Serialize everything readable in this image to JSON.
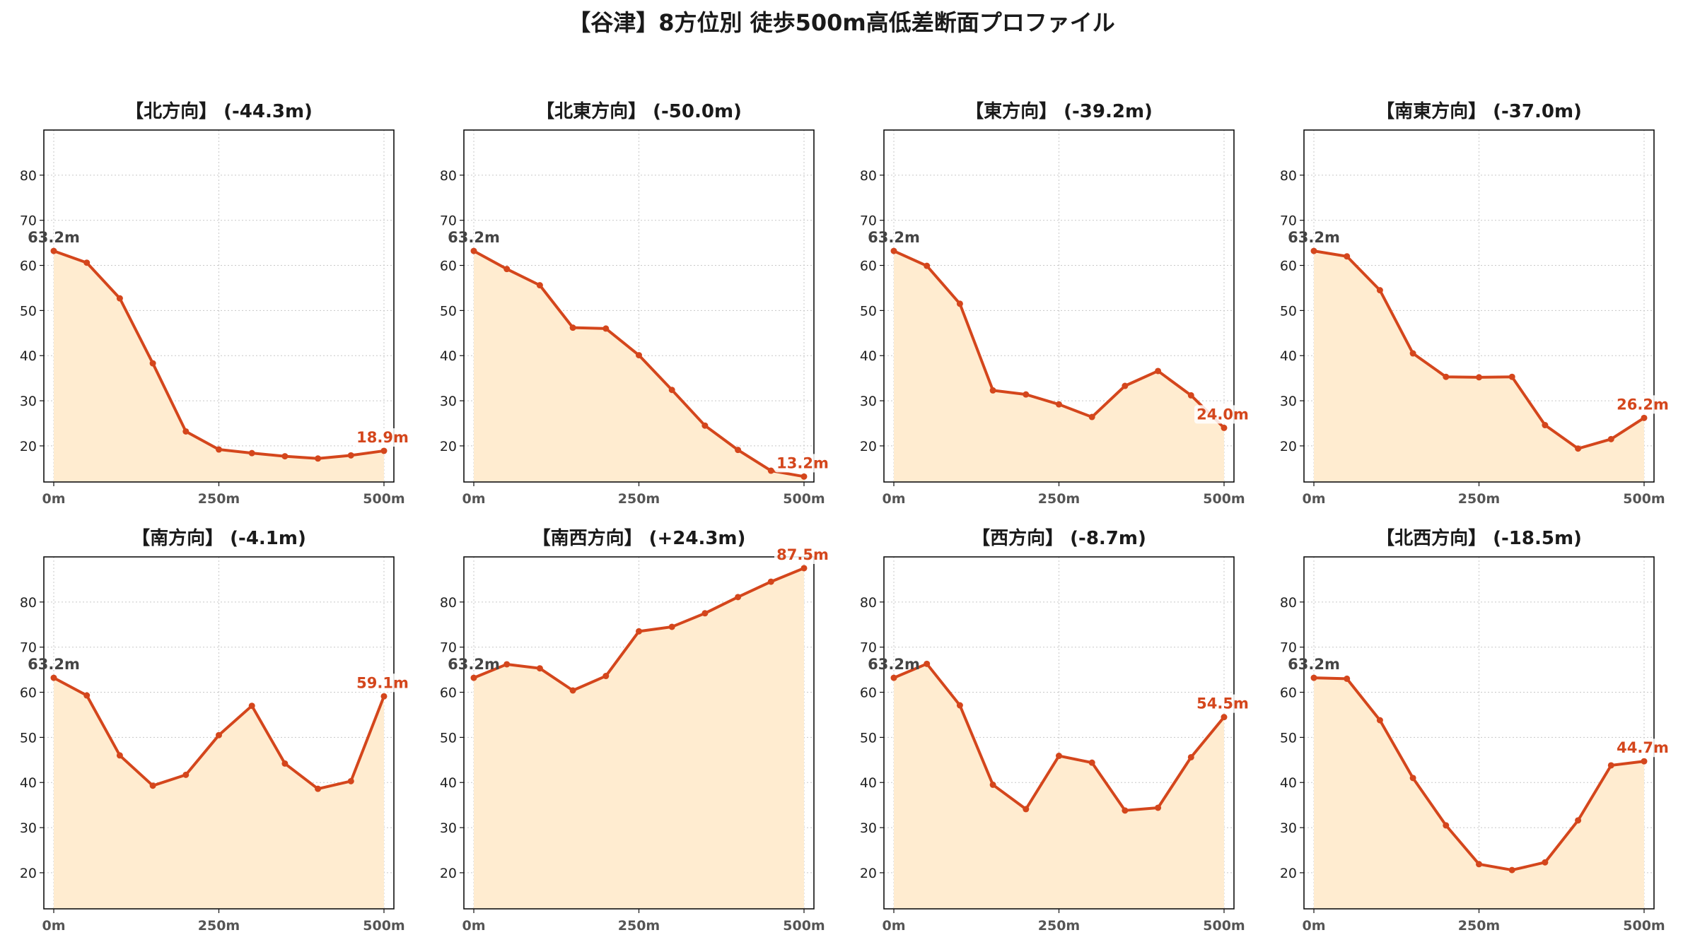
{
  "suptitle": "【谷津】8方位別 徒歩500m高低差断面プロファイル",
  "colors": {
    "line": "#d4461c",
    "fill": "#ffecd0",
    "start_label": "#444444",
    "end_label": "#d4461c",
    "grid": "#c8c8c8"
  },
  "chart_data": [
    {
      "type": "area",
      "title": "【北方向】 (-44.3m)",
      "x": [
        0,
        50,
        100,
        150,
        200,
        250,
        300,
        350,
        400,
        450,
        500
      ],
      "values": [
        63.2,
        60.6,
        52.7,
        38.3,
        23.2,
        19.2,
        18.4,
        17.7,
        17.2,
        17.9,
        18.9
      ],
      "start_label": "63.2m",
      "end_label": "18.9m",
      "ylim": [
        12,
        90
      ],
      "yticks": [
        20,
        30,
        40,
        50,
        60,
        70,
        80
      ],
      "xticks": [
        "0m",
        "250m",
        "500m"
      ],
      "grid": true
    },
    {
      "type": "area",
      "title": "【北東方向】 (-50.0m)",
      "x": [
        0,
        50,
        100,
        150,
        200,
        250,
        300,
        350,
        400,
        450,
        500
      ],
      "values": [
        63.2,
        59.2,
        55.6,
        46.2,
        46.0,
        40.1,
        32.4,
        24.5,
        19.1,
        14.5,
        13.2
      ],
      "start_label": "63.2m",
      "end_label": "13.2m",
      "ylim": [
        12,
        90
      ],
      "yticks": [
        20,
        30,
        40,
        50,
        60,
        70,
        80
      ],
      "xticks": [
        "0m",
        "250m",
        "500m"
      ],
      "grid": true
    },
    {
      "type": "area",
      "title": "【東方向】 (-39.2m)",
      "x": [
        0,
        50,
        100,
        150,
        200,
        250,
        300,
        350,
        400,
        450,
        500
      ],
      "values": [
        63.2,
        59.9,
        51.5,
        32.3,
        31.4,
        29.2,
        26.4,
        33.3,
        36.6,
        31.2,
        24.0
      ],
      "start_label": "63.2m",
      "end_label": "24.0m",
      "ylim": [
        12,
        90
      ],
      "yticks": [
        20,
        30,
        40,
        50,
        60,
        70,
        80
      ],
      "xticks": [
        "0m",
        "250m",
        "500m"
      ],
      "grid": true
    },
    {
      "type": "area",
      "title": "【南東方向】 (-37.0m)",
      "x": [
        0,
        50,
        100,
        150,
        200,
        250,
        300,
        350,
        400,
        450,
        500
      ],
      "values": [
        63.2,
        62.0,
        54.5,
        40.5,
        35.3,
        35.2,
        35.3,
        24.6,
        19.4,
        21.5,
        26.2
      ],
      "start_label": "63.2m",
      "end_label": "26.2m",
      "ylim": [
        12,
        90
      ],
      "yticks": [
        20,
        30,
        40,
        50,
        60,
        70,
        80
      ],
      "xticks": [
        "0m",
        "250m",
        "500m"
      ],
      "grid": true
    },
    {
      "type": "area",
      "title": "【南方向】 (-4.1m)",
      "x": [
        0,
        50,
        100,
        150,
        200,
        250,
        300,
        350,
        400,
        450,
        500
      ],
      "values": [
        63.2,
        59.3,
        46.0,
        39.3,
        41.7,
        50.5,
        57.0,
        44.2,
        38.6,
        40.3,
        59.1
      ],
      "start_label": "63.2m",
      "end_label": "59.1m",
      "ylim": [
        12,
        90
      ],
      "yticks": [
        20,
        30,
        40,
        50,
        60,
        70,
        80
      ],
      "xticks": [
        "0m",
        "250m",
        "500m"
      ],
      "grid": true
    },
    {
      "type": "area",
      "title": "【南西方向】 (+24.3m)",
      "x": [
        0,
        50,
        100,
        150,
        200,
        250,
        300,
        350,
        400,
        450,
        500
      ],
      "values": [
        63.2,
        66.2,
        65.3,
        60.4,
        63.6,
        73.5,
        74.5,
        77.5,
        81.1,
        84.5,
        87.5
      ],
      "start_label": "63.2m",
      "end_label": "87.5m",
      "ylim": [
        12,
        90
      ],
      "yticks": [
        20,
        30,
        40,
        50,
        60,
        70,
        80
      ],
      "xticks": [
        "0m",
        "250m",
        "500m"
      ],
      "grid": true
    },
    {
      "type": "area",
      "title": "【西方向】 (-8.7m)",
      "x": [
        0,
        50,
        100,
        150,
        200,
        250,
        300,
        350,
        400,
        450,
        500
      ],
      "values": [
        63.2,
        66.3,
        57.1,
        39.5,
        34.1,
        45.9,
        44.4,
        33.8,
        34.4,
        45.6,
        54.5
      ],
      "start_label": "63.2m",
      "end_label": "54.5m",
      "ylim": [
        12,
        90
      ],
      "yticks": [
        20,
        30,
        40,
        50,
        60,
        70,
        80
      ],
      "xticks": [
        "0m",
        "250m",
        "500m"
      ],
      "grid": true
    },
    {
      "type": "area",
      "title": "【北西方向】 (-18.5m)",
      "x": [
        0,
        50,
        100,
        150,
        200,
        250,
        300,
        350,
        400,
        450,
        500
      ],
      "values": [
        63.2,
        63.0,
        53.8,
        41.0,
        30.5,
        21.9,
        20.6,
        22.3,
        31.6,
        43.8,
        44.7
      ],
      "start_label": "63.2m",
      "end_label": "44.7m",
      "ylim": [
        12,
        90
      ],
      "yticks": [
        20,
        30,
        40,
        50,
        60,
        70,
        80
      ],
      "xticks": [
        "0m",
        "250m",
        "500m"
      ],
      "grid": true
    }
  ]
}
